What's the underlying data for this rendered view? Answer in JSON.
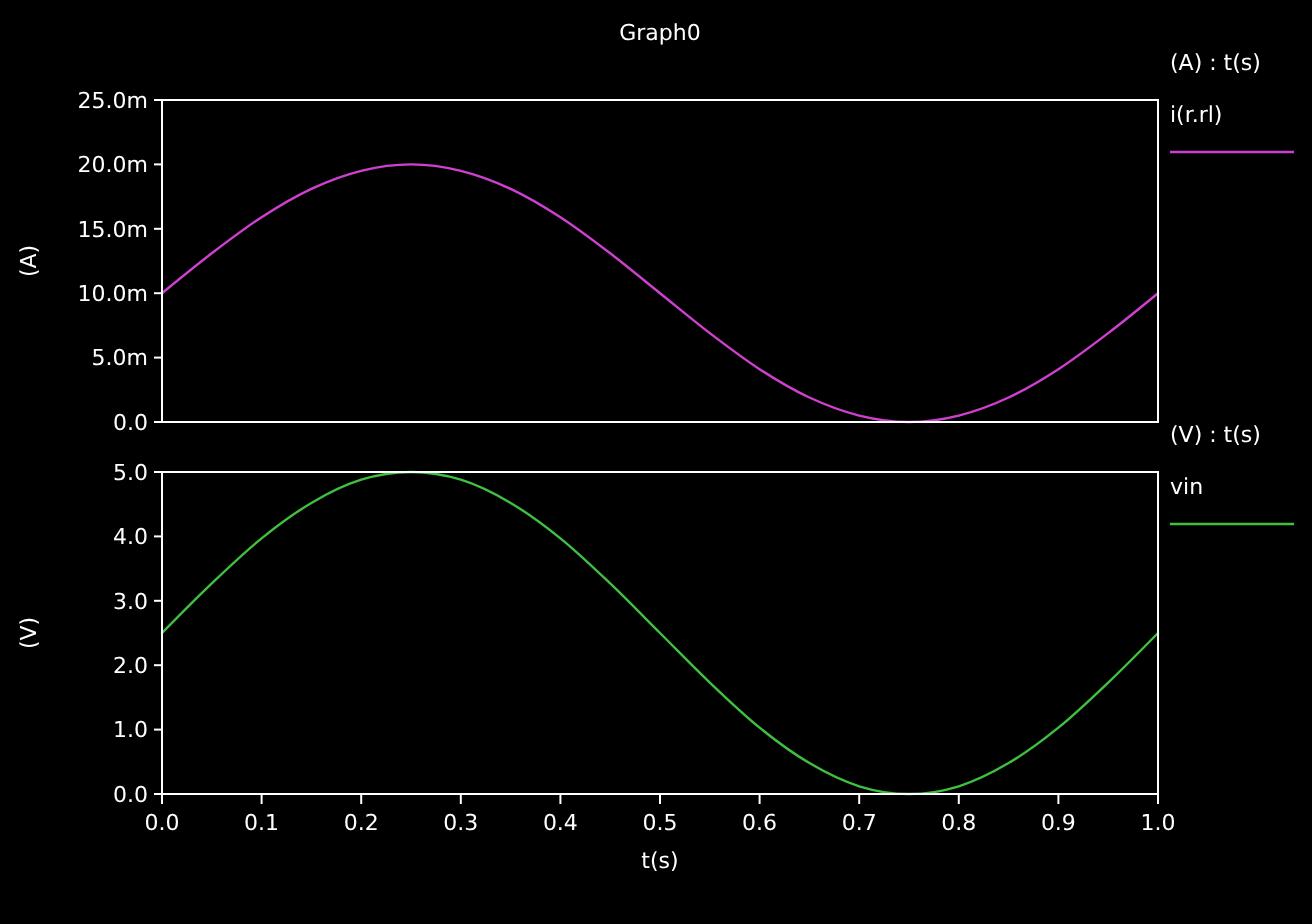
{
  "chart_data": [
    {
      "type": "line",
      "title": "Graph0",
      "ylabel": "(A)",
      "legend_title": "(A) : t(s)",
      "legend": "right",
      "tick_labels": "y",
      "x": [
        0,
        0.05,
        0.1,
        0.15,
        0.2,
        0.25,
        0.3,
        0.35,
        0.4,
        0.45,
        0.5,
        0.55,
        0.6,
        0.65,
        0.7,
        0.75,
        0.8,
        0.85,
        0.9,
        0.95,
        1.0
      ],
      "series": [
        {
          "name": "i(r.rl)",
          "color": "#d040d0",
          "values": [
            10.0,
            13.1,
            15.9,
            18.1,
            19.5,
            20.0,
            19.5,
            18.1,
            15.9,
            13.1,
            10.0,
            6.9,
            4.1,
            1.9,
            0.5,
            0.0,
            0.5,
            1.9,
            4.1,
            6.9,
            10.0
          ]
        }
      ],
      "xlim": [
        0,
        1
      ],
      "ylim": [
        0,
        25
      ],
      "yticks": [
        {
          "value": 0,
          "label": "0.0"
        },
        {
          "value": 5,
          "label": "5.0m"
        },
        {
          "value": 10,
          "label": "10.0m"
        },
        {
          "value": 15,
          "label": "15.0m"
        },
        {
          "value": 20,
          "label": "20.0m"
        },
        {
          "value": 25,
          "label": "25.0m"
        }
      ]
    },
    {
      "type": "line",
      "xlabel": "t(s)",
      "ylabel": "(V)",
      "legend_title": "(V) : t(s)",
      "legend": "right",
      "x": [
        0,
        0.05,
        0.1,
        0.15,
        0.2,
        0.25,
        0.3,
        0.35,
        0.4,
        0.45,
        0.5,
        0.55,
        0.6,
        0.65,
        0.7,
        0.75,
        0.8,
        0.85,
        0.9,
        0.95,
        1.0
      ],
      "series": [
        {
          "name": "vin",
          "color": "#40c040",
          "values": [
            2.5,
            3.27,
            3.97,
            4.52,
            4.88,
            5.0,
            4.88,
            4.52,
            3.97,
            3.27,
            2.5,
            1.73,
            1.03,
            0.48,
            0.12,
            0,
            0.12,
            0.48,
            1.03,
            1.73,
            2.5
          ]
        }
      ],
      "xlim": [
        0,
        1
      ],
      "ylim": [
        0,
        5
      ],
      "xticks": [
        {
          "value": 0,
          "label": "0.0"
        },
        {
          "value": 0.1,
          "label": "0.1"
        },
        {
          "value": 0.2,
          "label": "0.2"
        },
        {
          "value": 0.3,
          "label": "0.3"
        },
        {
          "value": 0.4,
          "label": "0.4"
        },
        {
          "value": 0.5,
          "label": "0.5"
        },
        {
          "value": 0.6,
          "label": "0.6"
        },
        {
          "value": 0.7,
          "label": "0.7"
        },
        {
          "value": 0.8,
          "label": "0.8"
        },
        {
          "value": 0.9,
          "label": "0.9"
        },
        {
          "value": 1,
          "label": "1.0"
        }
      ],
      "yticks": [
        {
          "value": 0,
          "label": "0.0"
        },
        {
          "value": 1,
          "label": "1.0"
        },
        {
          "value": 2,
          "label": "2.0"
        },
        {
          "value": 3,
          "label": "3.0"
        },
        {
          "value": 4,
          "label": "4.0"
        },
        {
          "value": 5,
          "label": "5.0"
        }
      ]
    }
  ]
}
